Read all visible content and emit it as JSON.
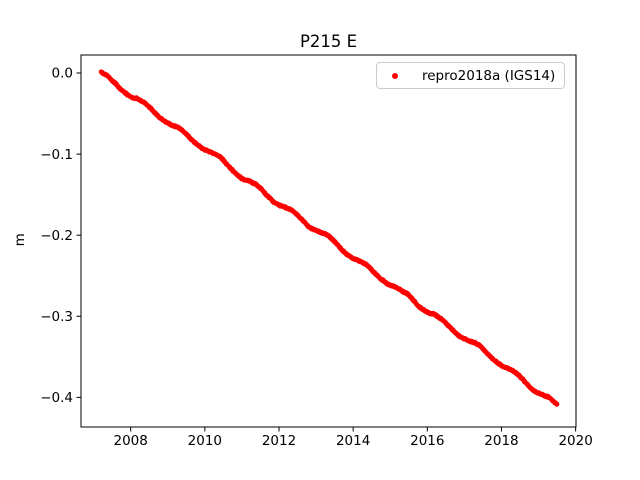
{
  "figure": {
    "background": "#ffffff",
    "frame_color": "#000000",
    "text_color": "#000000"
  },
  "chart_data": {
    "type": "scatter",
    "title": "P215 E",
    "xlabel": "",
    "ylabel": "m",
    "grid": false,
    "legend": {
      "position": "upper right",
      "border_color": "#cccccc",
      "entries": [
        {
          "label": "repro2018a (IGS14)",
          "marker": "dot",
          "color": "#ff0000"
        }
      ]
    },
    "xlim": [
      2006.66,
      2020.01
    ],
    "ylim": [
      -0.4365,
      0.0222
    ],
    "x_ticks": [
      {
        "v": 2008,
        "label": "2008"
      },
      {
        "v": 2010,
        "label": "2010"
      },
      {
        "v": 2012,
        "label": "2012"
      },
      {
        "v": 2014,
        "label": "2014"
      },
      {
        "v": 2016,
        "label": "2016"
      },
      {
        "v": 2018,
        "label": "2018"
      },
      {
        "v": 2020,
        "label": "2020"
      }
    ],
    "y_ticks": [
      {
        "v": 0.0,
        "label": "0.0"
      },
      {
        "v": -0.1,
        "label": "−0.1"
      },
      {
        "v": -0.2,
        "label": "−0.2"
      },
      {
        "v": -0.3,
        "label": "−0.3"
      },
      {
        "v": -0.4,
        "label": "−0.4"
      }
    ],
    "series": [
      {
        "name": "repro2018a (IGS14)",
        "color": "#ff0000",
        "marker_radius_px": 2.2,
        "t_start": 2007.2,
        "t_end": 2019.5,
        "n_points": 2200,
        "slope_m_per_yr": -0.0333,
        "seasonal_amplitude_m": 0.0025,
        "noise_sigma_m": 0.0012,
        "anchors": [
          [
            2007.2,
            0.0
          ],
          [
            2008.0,
            -0.027
          ],
          [
            2009.0,
            -0.06
          ],
          [
            2010.0,
            -0.093
          ],
          [
            2011.0,
            -0.127
          ],
          [
            2012.0,
            -0.16
          ],
          [
            2013.0,
            -0.193
          ],
          [
            2014.0,
            -0.227
          ],
          [
            2015.0,
            -0.26
          ],
          [
            2016.0,
            -0.293
          ],
          [
            2017.0,
            -0.326
          ],
          [
            2018.0,
            -0.36
          ],
          [
            2019.0,
            -0.393
          ],
          [
            2019.5,
            -0.41
          ]
        ]
      }
    ]
  }
}
